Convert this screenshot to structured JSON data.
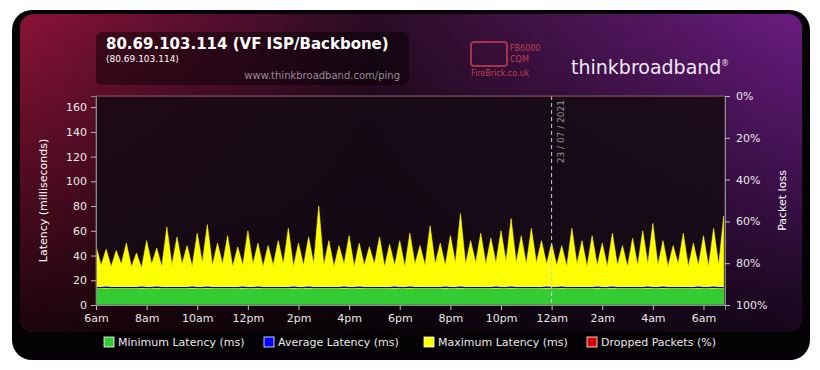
{
  "chart_data": {
    "type": "line",
    "title": "80.69.103.114 (VF ISP/Backbone)",
    "subtitle": "(80.69.103.114)",
    "source_url": "www.thinkbroadband.com/ping",
    "logo": {
      "brand": "thinkbroadband",
      "reg": "®",
      "partner_model": "FB6000",
      "partner_product": "CQM",
      "partner_site": "FireBrick.co.uk"
    },
    "y_label": "Latency (milliseconds)",
    "y2_label": "Packet loss",
    "legend": "bottom",
    "grid": false,
    "xlim": [
      6,
      30.85
    ],
    "xticks": [
      {
        "value": 6,
        "label": "6am"
      },
      {
        "value": 8,
        "label": "8am"
      },
      {
        "value": 10,
        "label": "10am"
      },
      {
        "value": 12,
        "label": "12pm"
      },
      {
        "value": 14,
        "label": "2pm"
      },
      {
        "value": 16,
        "label": "4pm"
      },
      {
        "value": 18,
        "label": "6pm"
      },
      {
        "value": 20,
        "label": "8pm"
      },
      {
        "value": 22,
        "label": "10pm"
      },
      {
        "value": 24,
        "label": "12am"
      },
      {
        "value": 26,
        "label": "2am"
      },
      {
        "value": 28,
        "label": "4am"
      },
      {
        "value": 30,
        "label": "6am"
      }
    ],
    "ylim": [
      0,
      169
    ],
    "yticks": [
      0,
      20,
      40,
      60,
      80,
      100,
      120,
      140,
      160
    ],
    "y2lim": [
      100,
      0
    ],
    "y2ticks": [
      {
        "value": 100,
        "label": "100%"
      },
      {
        "value": 80,
        "label": "80%"
      },
      {
        "value": 60,
        "label": "60%"
      },
      {
        "value": 40,
        "label": "40%"
      },
      {
        "value": 20,
        "label": "20%"
      },
      {
        "value": 0,
        "label": "0%"
      }
    ],
    "annotations": [
      {
        "x": 24,
        "text": "23 / 07 / 2021"
      }
    ],
    "x": [
      6,
      6.2,
      6.4,
      6.6,
      6.8,
      7,
      7.2,
      7.4,
      7.6,
      7.8,
      8,
      8.2,
      8.4,
      8.6,
      8.8,
      9,
      9.2,
      9.4,
      9.6,
      9.8,
      10,
      10.2,
      10.4,
      10.6,
      10.8,
      11,
      11.2,
      11.4,
      11.6,
      11.8,
      12,
      12.2,
      12.4,
      12.6,
      12.8,
      13,
      13.2,
      13.4,
      13.6,
      13.8,
      14,
      14.2,
      14.4,
      14.6,
      14.8,
      15,
      15.2,
      15.4,
      15.6,
      15.8,
      16,
      16.2,
      16.4,
      16.6,
      16.8,
      17,
      17.2,
      17.4,
      17.6,
      17.8,
      18,
      18.2,
      18.4,
      18.6,
      18.8,
      19,
      19.2,
      19.4,
      19.6,
      19.8,
      20,
      20.2,
      20.4,
      20.6,
      20.8,
      21,
      21.2,
      21.4,
      21.6,
      21.8,
      22,
      22.2,
      22.4,
      22.6,
      22.8,
      23,
      23.2,
      23.4,
      23.6,
      23.8,
      24,
      24.2,
      24.4,
      24.6,
      24.8,
      25,
      25.2,
      25.4,
      25.6,
      25.8,
      26,
      26.2,
      26.4,
      26.6,
      26.8,
      27,
      27.2,
      27.4,
      27.6,
      27.8,
      28,
      28.2,
      28.4,
      28.6,
      28.8,
      29,
      29.2,
      29.4,
      29.6,
      29.8,
      30,
      30.2,
      30.4,
      30.6,
      30.8
    ],
    "series": [
      {
        "name": "Minimum Latency (ms)",
        "color": "#33cc33",
        "type": "area",
        "values": [
          13,
          13,
          13,
          13,
          13,
          13,
          13,
          13,
          13,
          13,
          13,
          13,
          13,
          13,
          13,
          13,
          13,
          13,
          13,
          13,
          13,
          13,
          13,
          13,
          13,
          13,
          13,
          13,
          13,
          13,
          13,
          13,
          13,
          13,
          13,
          13,
          13,
          13,
          13,
          13,
          13,
          13,
          13,
          13,
          13,
          13,
          13,
          13,
          13,
          13,
          13,
          13,
          13,
          13,
          13,
          13,
          13,
          13,
          13,
          13,
          13,
          13,
          13,
          13,
          13,
          13,
          13,
          13,
          13,
          13,
          13,
          13,
          13,
          13,
          13,
          13,
          13,
          13,
          13,
          13,
          13,
          13,
          13,
          13,
          13,
          13,
          13,
          13,
          13,
          13,
          13,
          13,
          13,
          13,
          13,
          13,
          13,
          13,
          13,
          13,
          13,
          13,
          13,
          13,
          13,
          13,
          13,
          13,
          13,
          13,
          13,
          13,
          13,
          13,
          13,
          13,
          13,
          13,
          13,
          13,
          13,
          13,
          13,
          13,
          13
        ]
      },
      {
        "name": "Average Latency (ms)",
        "color": "#0000ff",
        "type": "line",
        "values": [
          14,
          14,
          14.5,
          14,
          14,
          14,
          14,
          14,
          14,
          14.5,
          14,
          14,
          14.5,
          14,
          14,
          14,
          14,
          14,
          14,
          14.5,
          14,
          14,
          14.5,
          14,
          14,
          14,
          14,
          14,
          14,
          14.5,
          14,
          14,
          14.5,
          14,
          14,
          14,
          14,
          14,
          14,
          14.5,
          14,
          14,
          14.5,
          14,
          14,
          14,
          14,
          14,
          14,
          14.5,
          14,
          14,
          14.5,
          14,
          14,
          14,
          14,
          14,
          14,
          14.5,
          14,
          14,
          14.5,
          14,
          14,
          14,
          14,
          14,
          14,
          14.5,
          14,
          14,
          14.5,
          14,
          14,
          14,
          14,
          14,
          14,
          14.5,
          14,
          14,
          14.5,
          14,
          14,
          14,
          14,
          14,
          14,
          14.5,
          14,
          14,
          14.5,
          14,
          14,
          14,
          14,
          14,
          14,
          14.5,
          14,
          14,
          14.5,
          14,
          14,
          14,
          14,
          14,
          14,
          14.5,
          14,
          14,
          14.5,
          14,
          14,
          14,
          14,
          14,
          14,
          14.5,
          14,
          14,
          14.5,
          14,
          14
        ]
      },
      {
        "name": "Maximum Latency (ms)",
        "color": "#ffff00",
        "type": "area",
        "values": [
          48,
          32,
          45,
          31,
          44,
          33,
          50,
          31,
          42,
          30,
          52,
          33,
          46,
          31,
          63,
          32,
          55,
          33,
          48,
          31,
          58,
          34,
          65,
          32,
          50,
          33,
          56,
          31,
          47,
          32,
          60,
          33,
          50,
          31,
          48,
          32,
          52,
          33,
          62,
          31,
          50,
          32,
          55,
          33,
          80,
          32,
          52,
          31,
          48,
          33,
          56,
          31,
          50,
          32,
          47,
          33,
          55,
          31,
          49,
          32,
          52,
          31,
          58,
          33,
          48,
          32,
          64,
          33,
          50,
          32,
          56,
          34,
          74,
          33,
          52,
          34,
          58,
          33,
          54,
          34,
          60,
          35,
          70,
          34,
          56,
          33,
          62,
          34,
          52,
          33,
          50,
          32,
          48,
          31,
          62,
          33,
          52,
          31,
          56,
          32,
          50,
          31,
          58,
          32,
          48,
          31,
          54,
          32,
          60,
          33,
          66,
          32,
          52,
          31,
          48,
          33,
          58,
          31,
          50,
          32,
          56,
          31,
          62,
          32,
          72
        ]
      },
      {
        "name": "Dropped Packets (%)",
        "color": "#dd0000",
        "type": "area",
        "axis": "y2",
        "values": [
          0,
          0,
          0,
          0,
          0,
          0,
          0,
          0,
          0,
          0,
          0,
          0,
          0,
          0,
          0,
          0,
          0,
          0,
          0,
          0,
          0,
          0,
          0,
          0,
          0,
          0,
          0,
          0,
          0,
          0,
          0,
          0,
          0,
          0,
          0,
          0,
          0,
          0,
          0,
          0,
          0,
          0,
          0,
          0,
          0,
          0,
          0,
          0,
          0,
          0,
          0,
          0,
          0,
          0,
          0,
          0,
          0,
          0,
          0,
          0,
          0,
          0,
          0,
          0,
          0,
          0,
          0,
          0,
          0,
          0,
          0,
          0,
          0,
          0,
          0,
          0,
          0,
          0,
          0,
          0,
          0,
          0,
          0,
          0,
          0,
          0,
          0,
          0,
          0,
          0,
          0,
          0,
          0,
          0,
          0,
          0,
          0,
          0,
          0,
          0,
          0,
          0,
          0,
          0,
          0,
          0,
          0,
          0,
          0,
          0,
          0,
          0,
          0,
          0,
          0,
          0,
          0,
          0,
          0,
          0,
          0,
          0,
          0,
          0,
          0
        ]
      }
    ]
  }
}
